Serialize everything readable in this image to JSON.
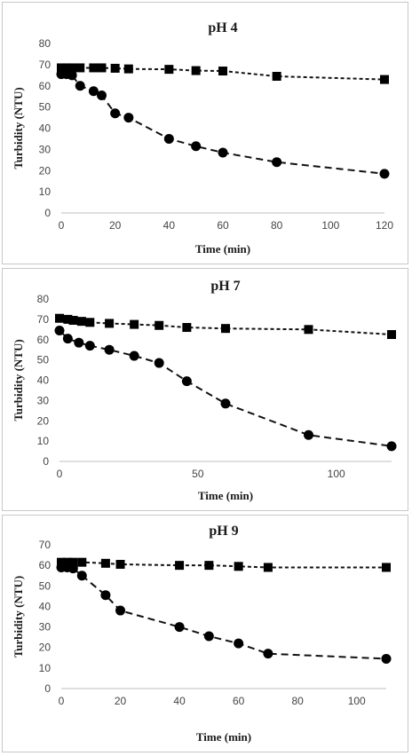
{
  "chart_data": [
    {
      "type": "scatter",
      "title": "pH 4",
      "xlabel": "Time (min)",
      "ylabel": "Turbidity (NTU)",
      "xlim": [
        0,
        120
      ],
      "ylim": [
        0,
        80
      ],
      "xticks": [
        0,
        20,
        40,
        60,
        80,
        100,
        120
      ],
      "yticks": [
        0,
        10,
        20,
        30,
        40,
        50,
        60,
        70,
        80
      ],
      "grid": false,
      "series": [
        {
          "marker": "square",
          "x": [
            0,
            2,
            4,
            7,
            12,
            15,
            20,
            25,
            40,
            50,
            60,
            80,
            120
          ],
          "y": [
            68.5,
            68.5,
            68.5,
            68.5,
            68.5,
            68.5,
            68.3,
            68,
            67.8,
            67.2,
            67,
            64.5,
            63
          ]
        },
        {
          "marker": "circle",
          "x": [
            0,
            2,
            4,
            7,
            12,
            15,
            20,
            25,
            40,
            50,
            60,
            80,
            120
          ],
          "y": [
            65.5,
            65.5,
            65,
            60,
            57.5,
            55.5,
            47,
            45,
            35,
            31.5,
            28.5,
            24,
            18.5
          ]
        }
      ]
    },
    {
      "type": "scatter",
      "title": "pH 7",
      "xlabel": "Time (min)",
      "ylabel": "Turbidity (NTU)",
      "xlim": [
        0,
        120
      ],
      "ylim": [
        0,
        80
      ],
      "xticks": [
        0,
        50,
        100
      ],
      "yticks": [
        0,
        10,
        20,
        30,
        40,
        50,
        60,
        70,
        80
      ],
      "grid": false,
      "series": [
        {
          "marker": "square",
          "x": [
            0,
            3,
            5,
            8,
            11,
            18,
            27,
            36,
            46,
            60,
            90,
            120
          ],
          "y": [
            70.5,
            70,
            69.5,
            69,
            68.5,
            68,
            67.5,
            67,
            66,
            65.5,
            65,
            62.5
          ]
        },
        {
          "marker": "circle",
          "x": [
            0,
            3,
            7,
            11,
            18,
            27,
            36,
            46,
            60,
            90,
            120
          ],
          "y": [
            64.5,
            60.5,
            58.5,
            57,
            55,
            52,
            48.5,
            39.5,
            28.5,
            13,
            7.5
          ]
        }
      ]
    },
    {
      "type": "scatter",
      "title": "pH 9",
      "xlabel": "Time (min)",
      "ylabel": "Turbidity (NTU)",
      "xlim": [
        0,
        110
      ],
      "ylim": [
        0,
        70
      ],
      "xticks": [
        0,
        20,
        40,
        60,
        80,
        100
      ],
      "yticks": [
        0,
        10,
        20,
        30,
        40,
        50,
        60,
        70
      ],
      "grid": false,
      "series": [
        {
          "marker": "square",
          "x": [
            0,
            2,
            4,
            7,
            15,
            20,
            40,
            50,
            60,
            70,
            110
          ],
          "y": [
            61.5,
            61.5,
            61.5,
            61.5,
            61,
            60.5,
            60,
            60,
            59.5,
            59,
            59
          ]
        },
        {
          "marker": "circle",
          "x": [
            0,
            2,
            4,
            7,
            15,
            20,
            40,
            50,
            60,
            70,
            110
          ],
          "y": [
            59,
            59,
            58.5,
            55,
            45.5,
            38,
            30,
            25.5,
            22,
            17,
            14.5
          ]
        }
      ]
    }
  ]
}
